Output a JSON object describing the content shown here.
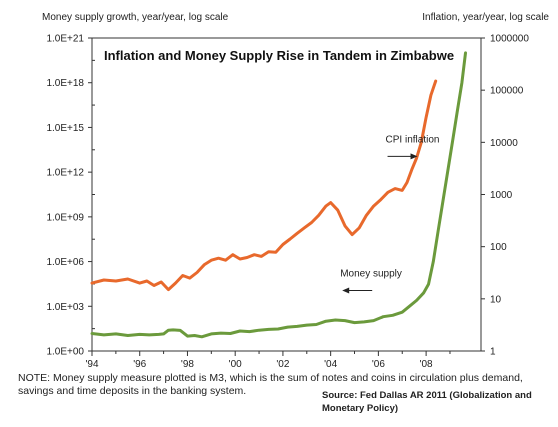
{
  "chart_data": {
    "type": "line",
    "title": "Inflation and Money Supply Rise in Tandem in Zimbabwe",
    "left_axis_title": "Money supply growth, year/year, log scale",
    "right_axis_title": "Inflation, year/year, log scale",
    "x_ticks": [
      "'94",
      "'96",
      "'98",
      "'00",
      "'02",
      "'04",
      "'06",
      "'08"
    ],
    "x_tick_values": [
      1994,
      1996,
      1998,
      2000,
      2002,
      2004,
      2006,
      2008
    ],
    "xlim": [
      1994,
      2010.3
    ],
    "left_scale": "log",
    "left_ylim": [
      1,
      1e+21
    ],
    "left_ticks": [
      {
        "label": "1.0E+00",
        "value": 1
      },
      {
        "label": "1.0E+03",
        "value": 1000.0
      },
      {
        "label": "1.0E+06",
        "value": 1000000.0
      },
      {
        "label": "1.0E+09",
        "value": 1000000000.0
      },
      {
        "label": "1.0E+12",
        "value": 1000000000000.0
      },
      {
        "label": "1.0E+15",
        "value": 1000000000000000.0
      },
      {
        "label": "1.0E+18",
        "value": 1e+18
      },
      {
        "label": "1.0E+21",
        "value": 1e+21
      }
    ],
    "right_scale": "log",
    "right_ylim": [
      1,
      1000000
    ],
    "right_ticks": [
      {
        "label": "1",
        "value": 1
      },
      {
        "label": "10",
        "value": 10
      },
      {
        "label": "100",
        "value": 100
      },
      {
        "label": "1000",
        "value": 1000
      },
      {
        "label": "10000",
        "value": 10000
      },
      {
        "label": "100000",
        "value": 100000
      },
      {
        "label": "1000000",
        "value": 1000000
      }
    ],
    "grid": false,
    "series": [
      {
        "name": "CPI inflation",
        "axis": "right",
        "color": "#e8692c",
        "x": [
          1994.0,
          1994.5,
          1995.0,
          1995.5,
          1996.0,
          1996.3,
          1996.6,
          1996.9,
          1997.2,
          1997.5,
          1997.8,
          1998.1,
          1998.4,
          1998.7,
          1999.0,
          1999.3,
          1999.6,
          1999.9,
          2000.2,
          2000.5,
          2000.8,
          2001.1,
          2001.4,
          2001.7,
          2002.0,
          2002.3,
          2002.6,
          2002.9,
          2003.2,
          2003.5,
          2003.8,
          2004.0,
          2004.3,
          2004.6,
          2004.9,
          2005.2,
          2005.5,
          2005.8,
          2006.1,
          2006.4,
          2006.7,
          2007.0,
          2007.2,
          2007.4,
          2007.6,
          2007.8,
          2008.0,
          2008.2,
          2008.4
        ],
        "values": [
          20,
          23,
          22,
          24,
          20,
          22,
          18,
          21,
          15,
          20,
          28,
          25,
          32,
          45,
          55,
          60,
          55,
          70,
          58,
          62,
          70,
          65,
          80,
          78,
          110,
          140,
          180,
          230,
          290,
          400,
          600,
          700,
          500,
          250,
          170,
          230,
          400,
          600,
          800,
          1100,
          1300,
          1200,
          1700,
          3000,
          5000,
          10000,
          30000,
          80000,
          150000
        ]
      },
      {
        "name": "Money supply",
        "axis": "left",
        "color": "#6b9a3c",
        "x": [
          1994.0,
          1994.5,
          1995.0,
          1995.5,
          1996.0,
          1996.4,
          1996.8,
          1997.0,
          1997.2,
          1997.4,
          1997.7,
          1998.0,
          1998.3,
          1998.6,
          1999.0,
          1999.4,
          1999.8,
          2000.2,
          2000.6,
          2001.0,
          2001.4,
          2001.8,
          2002.2,
          2002.6,
          2003.0,
          2003.4,
          2003.8,
          2004.2,
          2004.6,
          2005.0,
          2005.4,
          2005.8,
          2006.2,
          2006.6,
          2007.0,
          2007.3,
          2007.6,
          2007.9,
          2008.1,
          2008.3,
          2008.5,
          2008.7,
          2008.9,
          2009.1,
          2009.3,
          2009.5,
          2009.65
        ],
        "values": [
          15,
          12,
          14,
          11,
          13,
          12,
          13,
          14,
          25,
          26,
          24,
          10,
          11,
          9,
          14,
          16,
          15,
          22,
          20,
          25,
          28,
          30,
          40,
          45,
          55,
          60,
          100,
          120,
          110,
          80,
          90,
          110,
          200,
          250,
          400,
          1000,
          2500,
          8000,
          30000,
          1000000.0,
          100000000.0,
          10000000000.0,
          1000000000000.0,
          100000000000000.0,
          1e+16,
          1e+18,
          1e+20
        ]
      }
    ],
    "annotations": [
      {
        "text": "CPI inflation",
        "year": 2006.3,
        "right_value": 10000,
        "arrow": "right"
      },
      {
        "text": "Money supply",
        "year": 2004.4,
        "left_value": 100000.0,
        "arrow": "left"
      }
    ]
  },
  "note": "NOTE: Money supply measure plotted is M3, which is the sum of notes and coins in circulation plus demand, savings and time deposits in the banking system.",
  "source": "Source: Fed Dallas AR 2011 (Globalization and Monetary Policy)"
}
